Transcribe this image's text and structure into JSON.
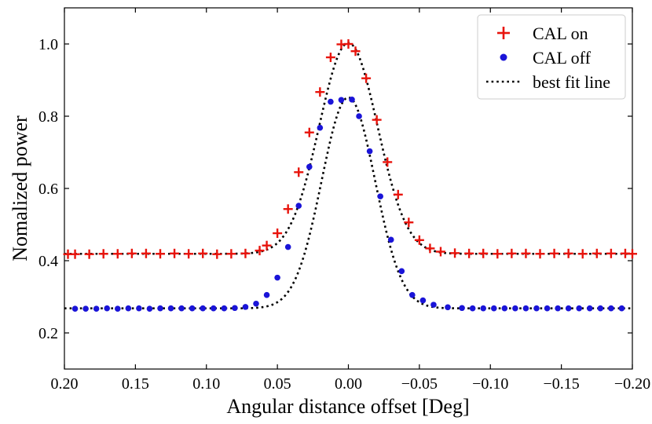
{
  "chart_data": {
    "type": "scatter",
    "title": "",
    "xlabel": "Angular distance offset [Deg]",
    "ylabel": "Nomalized power",
    "xlim": [
      0.2,
      -0.2
    ],
    "ylim": [
      0.1,
      1.1
    ],
    "x_ticks": [
      0.2,
      0.15,
      0.1,
      0.05,
      0.0,
      -0.05,
      -0.1,
      -0.15,
      -0.2
    ],
    "x_tick_labels": [
      "0.20",
      "0.15",
      "0.10",
      "0.05",
      "0.00",
      "−0.05",
      "−0.10",
      "−0.15",
      "−0.20"
    ],
    "y_ticks": [
      0.2,
      0.4,
      0.6,
      0.8,
      1.0
    ],
    "y_tick_labels": [
      "0.2",
      "0.4",
      "0.6",
      "0.8",
      "1.0"
    ],
    "grid": false,
    "legend_position": "top-right",
    "series": [
      {
        "name": "CAL on",
        "marker": "plus",
        "color": "#e8140c",
        "x": [
          0.1975,
          0.1925,
          0.1825,
          0.1725,
          0.1625,
          0.1525,
          0.1425,
          0.1325,
          0.1225,
          0.1125,
          0.1025,
          0.0925,
          0.0825,
          0.0725,
          0.0625,
          0.0575,
          0.05,
          0.0425,
          0.035,
          0.0275,
          0.02,
          0.0125,
          0.005,
          0.0,
          -0.005,
          -0.0125,
          -0.02,
          -0.0275,
          -0.035,
          -0.0425,
          -0.05,
          -0.0575,
          -0.065,
          -0.075,
          -0.085,
          -0.095,
          -0.105,
          -0.115,
          -0.125,
          -0.135,
          -0.145,
          -0.155,
          -0.165,
          -0.175,
          -0.185,
          -0.195,
          -0.2
        ],
        "y": [
          0.418,
          0.418,
          0.418,
          0.419,
          0.419,
          0.42,
          0.42,
          0.419,
          0.42,
          0.419,
          0.42,
          0.418,
          0.419,
          0.42,
          0.428,
          0.442,
          0.476,
          0.543,
          0.645,
          0.755,
          0.867,
          0.963,
          0.999,
          1.0,
          0.98,
          0.905,
          0.79,
          0.673,
          0.583,
          0.506,
          0.457,
          0.434,
          0.425,
          0.421,
          0.42,
          0.42,
          0.419,
          0.42,
          0.42,
          0.419,
          0.42,
          0.42,
          0.419,
          0.42,
          0.42,
          0.42,
          0.419
        ]
      },
      {
        "name": "CAL off",
        "marker": "circle",
        "color": "#1a14d8",
        "x": [
          0.1925,
          0.185,
          0.1775,
          0.17,
          0.1625,
          0.155,
          0.1475,
          0.14,
          0.1325,
          0.125,
          0.1175,
          0.11,
          0.1025,
          0.095,
          0.0875,
          0.08,
          0.0725,
          0.065,
          0.0575,
          0.05,
          0.0425,
          0.035,
          0.0275,
          0.02,
          0.0125,
          0.005,
          -0.0025,
          -0.0075,
          -0.015,
          -0.0225,
          -0.03,
          -0.0375,
          -0.045,
          -0.0525,
          -0.06,
          -0.07,
          -0.08,
          -0.0875,
          -0.095,
          -0.1025,
          -0.11,
          -0.1175,
          -0.125,
          -0.1325,
          -0.14,
          -0.1475,
          -0.155,
          -0.1625,
          -0.17,
          -0.1775,
          -0.185,
          -0.1925
        ],
        "y": [
          0.267,
          0.267,
          0.267,
          0.268,
          0.267,
          0.268,
          0.268,
          0.267,
          0.268,
          0.268,
          0.268,
          0.268,
          0.268,
          0.268,
          0.268,
          0.269,
          0.272,
          0.281,
          0.305,
          0.353,
          0.438,
          0.552,
          0.66,
          0.768,
          0.84,
          0.845,
          0.846,
          0.8,
          0.703,
          0.578,
          0.458,
          0.371,
          0.305,
          0.29,
          0.278,
          0.271,
          0.269,
          0.268,
          0.268,
          0.268,
          0.268,
          0.268,
          0.268,
          0.268,
          0.268,
          0.268,
          0.268,
          0.268,
          0.268,
          0.268,
          0.268,
          0.268
        ]
      }
    ],
    "fit_lines": [
      {
        "name": "best fit line",
        "style": "dotted",
        "color": "#000000",
        "baseline": 0.419,
        "amplitude": 0.584,
        "center": 0.0,
        "sigma": 0.0205,
        "x_range": [
          0.2,
          -0.2
        ]
      },
      {
        "name": "best fit line (CAL off)",
        "style": "dotted",
        "color": "#000000",
        "baseline": 0.268,
        "amplitude": 0.584,
        "center": 0.0,
        "sigma": 0.0188,
        "x_range": [
          0.2,
          -0.2
        ]
      }
    ],
    "legend": [
      "CAL on",
      "CAL off",
      "best fit line"
    ]
  }
}
